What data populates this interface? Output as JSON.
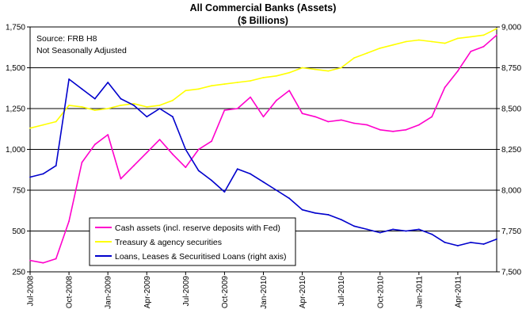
{
  "chart_data": {
    "type": "line",
    "title": "All Commercial Banks (Assets)",
    "subtitle": "($ Billions)",
    "annotations": [
      "Source: FRB H8",
      "Not Seasonally Adjusted"
    ],
    "x_start": "2008-07",
    "x_end": "2011-07",
    "x_tick_labels": [
      "Jul-2008",
      "Oct-2008",
      "Jan-2009",
      "Apr-2009",
      "Jul-2009",
      "Oct-2009",
      "Jan-2010",
      "Apr-2010",
      "Jul-2010",
      "Oct-2010",
      "Jan-2011",
      "Apr-2011"
    ],
    "x_tick_dates": [
      "2008-07",
      "2008-10",
      "2009-01",
      "2009-04",
      "2009-07",
      "2009-10",
      "2010-01",
      "2010-04",
      "2010-07",
      "2010-10",
      "2011-01",
      "2011-04"
    ],
    "y_left": {
      "ylim": [
        250,
        1750
      ],
      "ticks": [
        250,
        500,
        750,
        1000,
        1250,
        1500,
        1750
      ],
      "tick_labels": [
        "250",
        "500",
        "750",
        "1,000",
        "1,250",
        "1,500",
        "1,750"
      ]
    },
    "y_right": {
      "ylim": [
        7500,
        9000
      ],
      "ticks": [
        7500,
        7750,
        8000,
        8250,
        8500,
        8750,
        9000
      ],
      "tick_labels": [
        "7,500",
        "7,750",
        "8,000",
        "8,250",
        "8,500",
        "8,750",
        "9,000"
      ]
    },
    "grid": "horizontal",
    "legend_position": "bottom-left",
    "series": [
      {
        "name": "Cash assets (incl. reserve deposits with Fed)",
        "axis": "left",
        "color": "#ff00cc",
        "x": [
          "2008-07",
          "2008-08",
          "2008-09",
          "2008-10",
          "2008-11",
          "2008-12",
          "2009-01",
          "2009-02",
          "2009-03",
          "2009-04",
          "2009-05",
          "2009-06",
          "2009-07",
          "2009-08",
          "2009-09",
          "2009-10",
          "2009-11",
          "2009-12",
          "2010-01",
          "2010-02",
          "2010-03",
          "2010-04",
          "2010-05",
          "2010-06",
          "2010-07",
          "2010-08",
          "2010-09",
          "2010-10",
          "2010-11",
          "2010-12",
          "2011-01",
          "2011-02",
          "2011-03",
          "2011-04",
          "2011-05",
          "2011-06",
          "2011-07"
        ],
        "values": [
          320,
          305,
          330,
          560,
          920,
          1030,
          1090,
          820,
          900,
          980,
          1060,
          970,
          890,
          1000,
          1050,
          1240,
          1250,
          1320,
          1200,
          1300,
          1360,
          1220,
          1200,
          1170,
          1180,
          1160,
          1150,
          1120,
          1110,
          1120,
          1150,
          1200,
          1380,
          1480,
          1600,
          1630,
          1700
        ]
      },
      {
        "name": "Treasury & agency securities",
        "axis": "left",
        "color": "#ffff00",
        "x": [
          "2008-07",
          "2008-08",
          "2008-09",
          "2008-10",
          "2008-11",
          "2008-12",
          "2009-01",
          "2009-02",
          "2009-03",
          "2009-04",
          "2009-05",
          "2009-06",
          "2009-07",
          "2009-08",
          "2009-09",
          "2009-10",
          "2009-11",
          "2009-12",
          "2010-01",
          "2010-02",
          "2010-03",
          "2010-04",
          "2010-05",
          "2010-06",
          "2010-07",
          "2010-08",
          "2010-09",
          "2010-10",
          "2010-11",
          "2010-12",
          "2011-01",
          "2011-02",
          "2011-03",
          "2011-04",
          "2011-05",
          "2011-06",
          "2011-07"
        ],
        "values": [
          1130,
          1150,
          1170,
          1270,
          1260,
          1240,
          1250,
          1270,
          1280,
          1260,
          1270,
          1300,
          1360,
          1370,
          1390,
          1400,
          1410,
          1420,
          1440,
          1450,
          1470,
          1500,
          1490,
          1480,
          1500,
          1560,
          1590,
          1620,
          1640,
          1660,
          1670,
          1660,
          1650,
          1680,
          1690,
          1700,
          1740
        ]
      },
      {
        "name": "Loans, Leases & Securitised Loans (right axis)",
        "axis": "right",
        "color": "#0000cc",
        "x": [
          "2008-07",
          "2008-08",
          "2008-09",
          "2008-10",
          "2008-11",
          "2008-12",
          "2009-01",
          "2009-02",
          "2009-03",
          "2009-04",
          "2009-05",
          "2009-06",
          "2009-07",
          "2009-08",
          "2009-09",
          "2009-10",
          "2009-11",
          "2009-12",
          "2010-01",
          "2010-02",
          "2010-03",
          "2010-04",
          "2010-05",
          "2010-06",
          "2010-07",
          "2010-08",
          "2010-09",
          "2010-10",
          "2010-11",
          "2010-12",
          "2011-01",
          "2011-02",
          "2011-03",
          "2011-04",
          "2011-05",
          "2011-06",
          "2011-07"
        ],
        "values": [
          8080,
          8100,
          8150,
          8680,
          8620,
          8560,
          8660,
          8560,
          8520,
          8450,
          8500,
          8450,
          8250,
          8120,
          8060,
          7990,
          8130,
          8100,
          8050,
          8000,
          7950,
          7880,
          7860,
          7850,
          7820,
          7780,
          7760,
          7740,
          7760,
          7750,
          7760,
          7730,
          7680,
          7660,
          7680,
          7670,
          7700
        ]
      }
    ]
  }
}
